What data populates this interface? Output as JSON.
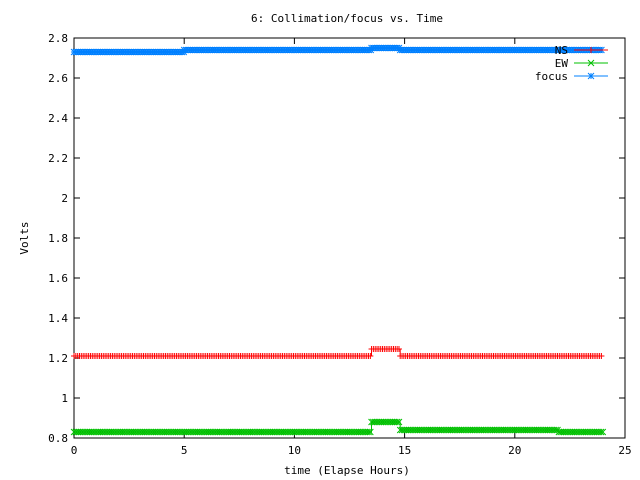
{
  "chart_data": {
    "type": "line",
    "title": "6: Collimation/focus vs. Time",
    "xlabel": "time (Elapse Hours)",
    "ylabel": "Volts",
    "xlim": [
      0,
      25
    ],
    "ylim": [
      0.8,
      2.8
    ],
    "xticks": [
      0,
      5,
      10,
      15,
      20,
      25
    ],
    "yticks": [
      0.8,
      1,
      1.2,
      1.4,
      1.6,
      1.8,
      2,
      2.2,
      2.4,
      2.6,
      2.8
    ],
    "xtick_labels": [
      "0",
      "5",
      "10",
      "15",
      "20",
      "25"
    ],
    "ytick_labels": [
      "0.8",
      "1",
      "1.2",
      "1.4",
      "1.6",
      "1.8",
      "2",
      "2.2",
      "2.4",
      "2.6",
      "2.8"
    ],
    "grid": false,
    "legend_position": "top-right",
    "series": [
      {
        "name": "NS",
        "color": "#ff0000",
        "marker": "plus",
        "segments": [
          {
            "x_start": 0,
            "x_end": 13.5,
            "y": 1.21
          },
          {
            "x_start": 13.5,
            "x_end": 14.8,
            "y": 1.245
          },
          {
            "x_start": 14.8,
            "x_end": 24,
            "y": 1.21
          }
        ]
      },
      {
        "name": "EW",
        "color": "#00c000",
        "marker": "cross",
        "segments": [
          {
            "x_start": 0,
            "x_end": 13.5,
            "y": 0.83
          },
          {
            "x_start": 13.5,
            "x_end": 14.8,
            "y": 0.88
          },
          {
            "x_start": 14.8,
            "x_end": 22,
            "y": 0.84
          },
          {
            "x_start": 22,
            "x_end": 24,
            "y": 0.83
          }
        ]
      },
      {
        "name": "focus",
        "color": "#0080ff",
        "marker": "star",
        "segments": [
          {
            "x_start": 0,
            "x_end": 5,
            "y": 2.73
          },
          {
            "x_start": 5,
            "x_end": 13.5,
            "y": 2.74
          },
          {
            "x_start": 13.5,
            "x_end": 14.8,
            "y": 2.75
          },
          {
            "x_start": 14.8,
            "x_end": 24,
            "y": 2.74
          }
        ]
      }
    ]
  }
}
